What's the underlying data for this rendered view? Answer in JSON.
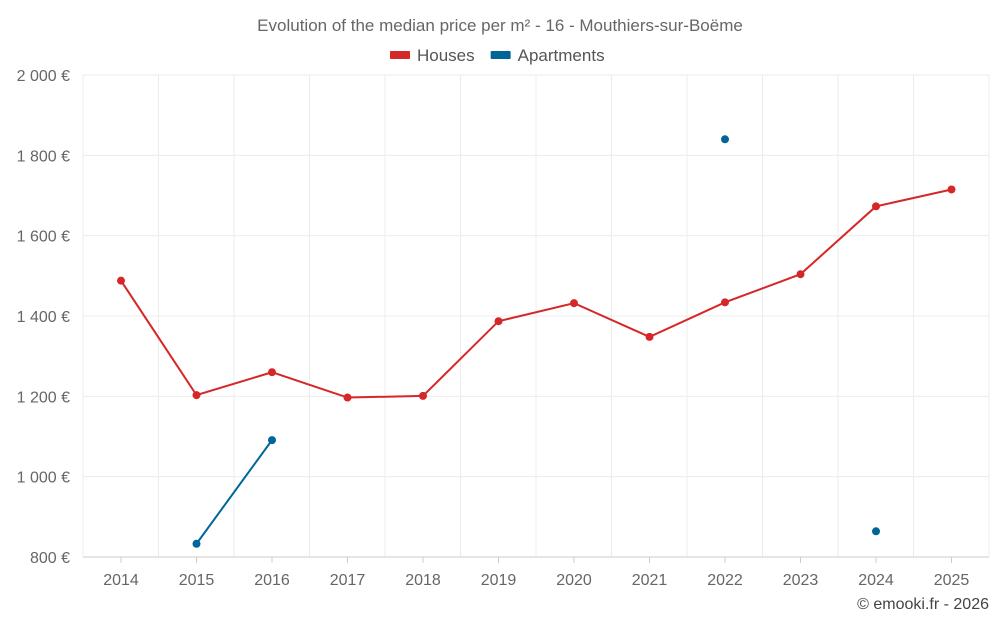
{
  "chart_data": {
    "type": "line",
    "title": "Evolution of the median price per m² - 16 - Mouthiers-sur-Boëme",
    "credit": "© emooki.fr - 2026",
    "x": [
      2014,
      2015,
      2016,
      2017,
      2018,
      2019,
      2020,
      2021,
      2022,
      2023,
      2024,
      2025
    ],
    "x_tick_labels": [
      "2014",
      "2015",
      "2016",
      "2017",
      "2018",
      "2019",
      "2020",
      "2021",
      "2022",
      "2023",
      "2024",
      "2025"
    ],
    "ylim": [
      800,
      2000
    ],
    "y_ticks": [
      800,
      1000,
      1200,
      1400,
      1600,
      1800,
      2000
    ],
    "y_tick_labels": [
      "800 €",
      "1 000 €",
      "1 200 €",
      "1 400 €",
      "1 600 €",
      "1 800 €",
      "2 000 €"
    ],
    "grid": true,
    "legend_position": "top-center",
    "series": [
      {
        "name": "Houses",
        "color": "#d62728",
        "values": [
          1488,
          1203,
          1260,
          1197,
          1201,
          1387,
          1432,
          1348,
          1434,
          1504,
          1673,
          1715
        ]
      },
      {
        "name": "Apartments",
        "color": "#006699",
        "values": [
          null,
          833,
          1091,
          null,
          null,
          null,
          null,
          null,
          1840,
          null,
          864,
          null
        ]
      }
    ]
  }
}
